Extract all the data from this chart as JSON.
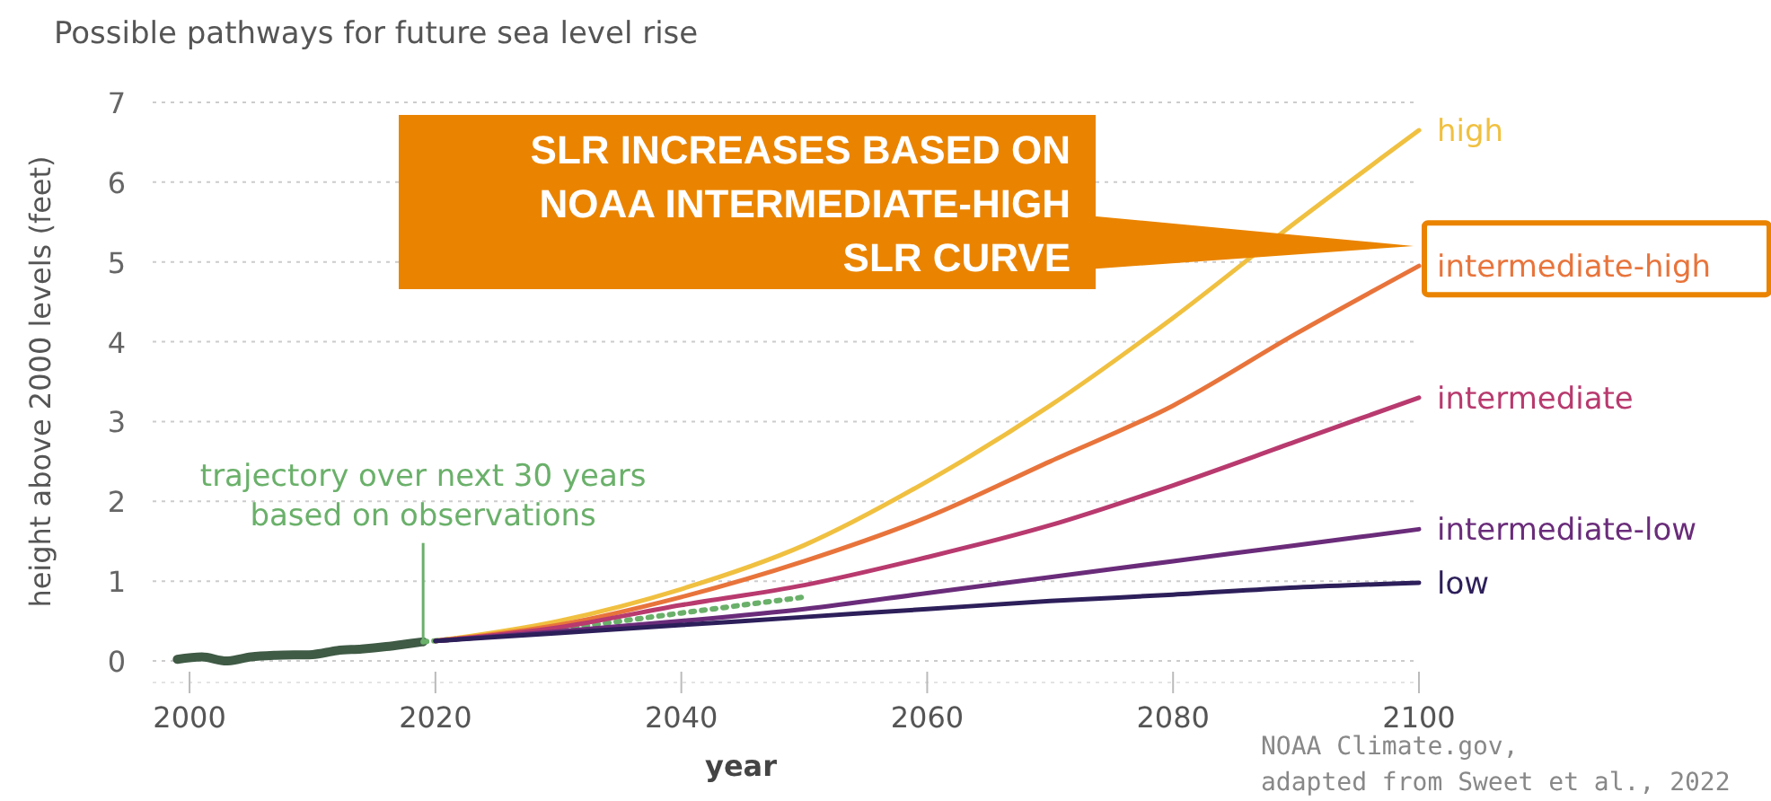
{
  "chart_data": {
    "type": "line",
    "title": "Possible pathways for future sea level rise",
    "xlabel": "year",
    "ylabel": "height above 2000 levels (feet)",
    "xlim": [
      1997,
      2100
    ],
    "xticks": [
      2000,
      2020,
      2040,
      2060,
      2080,
      2100
    ],
    "ylim": [
      0,
      7
    ],
    "yticks": [
      0,
      1,
      2,
      3,
      4,
      5,
      6,
      7
    ],
    "grid": "y",
    "series": [
      {
        "color": "#3f5a45",
        "x": [
          1999,
          2001,
          2003,
          2005,
          2007,
          2010,
          2012,
          2014,
          2016,
          2018,
          2019
        ],
        "values": [
          0.02,
          0.05,
          0.0,
          0.05,
          0.07,
          0.08,
          0.13,
          0.15,
          0.18,
          0.22,
          0.24
        ]
      },
      {
        "color": "#6ab06a",
        "line_style": "dotted",
        "x": [
          2019,
          2030,
          2040,
          2050
        ],
        "values": [
          0.24,
          0.4,
          0.6,
          0.8
        ]
      },
      {
        "name": "high",
        "color": "#f0c040",
        "x": [
          2020,
          2030,
          2040,
          2050,
          2060,
          2070,
          2080,
          2090,
          2100
        ],
        "values": [
          0.25,
          0.5,
          0.9,
          1.45,
          2.25,
          3.2,
          4.3,
          5.5,
          6.65
        ]
      },
      {
        "name": "intermediate-high",
        "color": "#e8743b",
        "x": [
          2020,
          2030,
          2040,
          2050,
          2060,
          2070,
          2080,
          2090,
          2100
        ],
        "values": [
          0.25,
          0.45,
          0.8,
          1.25,
          1.8,
          2.5,
          3.2,
          4.1,
          4.95
        ]
      },
      {
        "name": "intermediate",
        "color": "#b83a6e",
        "x": [
          2020,
          2030,
          2040,
          2050,
          2060,
          2070,
          2080,
          2090,
          2100
        ],
        "values": [
          0.25,
          0.42,
          0.7,
          0.95,
          1.3,
          1.7,
          2.2,
          2.75,
          3.3
        ]
      },
      {
        "name": "intermediate-low",
        "color": "#6a2c7a",
        "x": [
          2020,
          2030,
          2040,
          2050,
          2060,
          2070,
          2080,
          2090,
          2100
        ],
        "values": [
          0.25,
          0.37,
          0.5,
          0.65,
          0.85,
          1.05,
          1.25,
          1.45,
          1.65
        ]
      },
      {
        "name": "low",
        "color": "#2d1f5a",
        "x": [
          2020,
          2030,
          2040,
          2050,
          2060,
          2070,
          2080,
          2090,
          2100
        ],
        "values": [
          0.25,
          0.35,
          0.45,
          0.55,
          0.65,
          0.75,
          0.83,
          0.92,
          0.98
        ]
      }
    ],
    "annotations": [
      "SLR INCREASES BASED ON\nNOAA INTERMEDIATE-HIGH\nSLR CURVE",
      {
        "text": "trajectory over next 30 years\nbased on observations",
        "x": 2019,
        "y": 0.24
      },
      "NOAA Climate.gov,\nadapted from Sweet et al., 2022"
    ]
  }
}
